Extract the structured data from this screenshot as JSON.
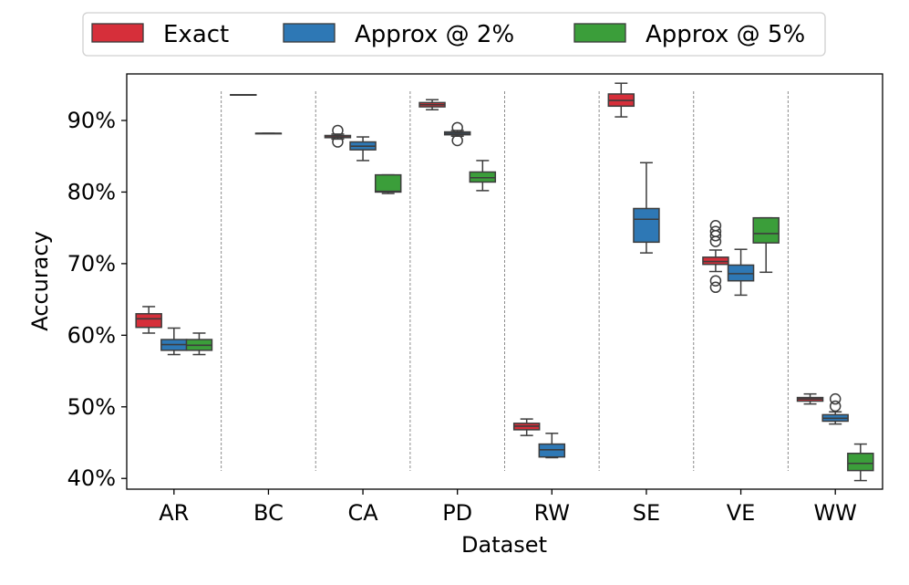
{
  "chart_data": {
    "type": "box",
    "xlabel": "Dataset",
    "ylabel": "Accuracy",
    "ylim": [
      38.5,
      96.5
    ],
    "yticks": [
      {
        "value": 40,
        "label": "40%"
      },
      {
        "value": 50,
        "label": "50%"
      },
      {
        "value": 60,
        "label": "60%"
      },
      {
        "value": 70,
        "label": "70%"
      },
      {
        "value": 80,
        "label": "80%"
      },
      {
        "value": 90,
        "label": "90%"
      }
    ],
    "categories": [
      "AR",
      "BC",
      "CA",
      "PD",
      "RW",
      "SE",
      "VE",
      "WW"
    ],
    "legend_position": "top-center",
    "series": [
      {
        "name": "Exact",
        "color": "#d62f3a",
        "boxes": [
          {
            "category": "AR",
            "whislo": 60.3,
            "q1": 61.1,
            "med": 62.3,
            "q3": 63.0,
            "whishi": 64.0,
            "fliers": []
          },
          {
            "category": "BC",
            "whislo": 93.6,
            "q1": 93.6,
            "med": 93.6,
            "q3": 93.6,
            "whishi": 93.6,
            "fliers": []
          },
          {
            "category": "CA",
            "whislo": 87.4,
            "q1": 87.6,
            "med": 87.7,
            "q3": 87.9,
            "whishi": 88.1,
            "fliers": [
              87.0,
              88.6
            ]
          },
          {
            "category": "PD",
            "whislo": 91.5,
            "q1": 91.9,
            "med": 92.2,
            "q3": 92.5,
            "whishi": 92.9,
            "fliers": []
          },
          {
            "category": "RW",
            "whislo": 46.0,
            "q1": 46.8,
            "med": 47.3,
            "q3": 47.7,
            "whishi": 48.3,
            "fliers": []
          },
          {
            "category": "SE",
            "whislo": 90.5,
            "q1": 92.0,
            "med": 92.8,
            "q3": 93.7,
            "whishi": 95.2,
            "fliers": []
          },
          {
            "category": "VE",
            "whislo": 68.9,
            "q1": 69.9,
            "med": 70.3,
            "q3": 70.9,
            "whishi": 71.9,
            "fliers": [
              66.7,
              67.6,
              73.1,
              73.9,
              74.5,
              75.3
            ]
          },
          {
            "category": "WW",
            "whislo": 50.4,
            "q1": 50.8,
            "med": 51.1,
            "q3": 51.3,
            "whishi": 51.8,
            "fliers": []
          }
        ]
      },
      {
        "name": "Approx @ 2%",
        "color": "#2e78b5",
        "boxes": [
          {
            "category": "AR",
            "whislo": 57.3,
            "q1": 57.9,
            "med": 58.7,
            "q3": 59.4,
            "whishi": 61.0,
            "fliers": []
          },
          {
            "category": "BC",
            "whislo": 88.2,
            "q1": 88.2,
            "med": 88.2,
            "q3": 88.2,
            "whishi": 88.2,
            "fliers": []
          },
          {
            "category": "CA",
            "whislo": 84.4,
            "q1": 85.9,
            "med": 86.4,
            "q3": 87.0,
            "whishi": 87.7,
            "fliers": []
          },
          {
            "category": "PD",
            "whislo": 87.8,
            "q1": 88.0,
            "med": 88.2,
            "q3": 88.4,
            "whishi": 88.6,
            "fliers": [
              87.2,
              89.0
            ]
          },
          {
            "category": "RW",
            "whislo": 42.9,
            "q1": 43.0,
            "med": 44.0,
            "q3": 44.8,
            "whishi": 46.3,
            "fliers": []
          },
          {
            "category": "SE",
            "whislo": 71.5,
            "q1": 73.0,
            "med": 76.2,
            "q3": 77.7,
            "whishi": 84.1,
            "fliers": []
          },
          {
            "category": "VE",
            "whislo": 65.6,
            "q1": 67.6,
            "med": 68.6,
            "q3": 69.8,
            "whishi": 72.0,
            "fliers": []
          },
          {
            "category": "WW",
            "whislo": 47.6,
            "q1": 48.0,
            "med": 48.4,
            "q3": 48.9,
            "whishi": 49.3,
            "fliers": [
              50.1,
              51.1
            ]
          }
        ]
      },
      {
        "name": "Approx @ 5%",
        "color": "#3b9e3a",
        "boxes": [
          {
            "category": "AR",
            "whislo": 57.3,
            "q1": 57.9,
            "med": 58.6,
            "q3": 59.4,
            "whishi": 60.3,
            "fliers": []
          },
          {
            "category": "BC",
            "whislo": null,
            "q1": null,
            "med": null,
            "q3": null,
            "whishi": null,
            "fliers": []
          },
          {
            "category": "CA",
            "whislo": 79.8,
            "q1": 80.0,
            "med": 80.1,
            "q3": 82.4,
            "whishi": 82.4,
            "fliers": []
          },
          {
            "category": "PD",
            "whislo": 80.2,
            "q1": 81.4,
            "med": 82.0,
            "q3": 82.8,
            "whishi": 84.4,
            "fliers": []
          },
          {
            "category": "RW",
            "whislo": null,
            "q1": null,
            "med": null,
            "q3": null,
            "whishi": null,
            "fliers": []
          },
          {
            "category": "SE",
            "whislo": null,
            "q1": null,
            "med": null,
            "q3": null,
            "whishi": null,
            "fliers": []
          },
          {
            "category": "VE",
            "whislo": 68.8,
            "q1": 72.9,
            "med": 74.2,
            "q3": 76.4,
            "whishi": 76.4,
            "fliers": []
          },
          {
            "category": "WW",
            "whislo": 39.7,
            "q1": 41.1,
            "med": 42.1,
            "q3": 43.5,
            "whishi": 44.8,
            "fliers": []
          }
        ]
      }
    ]
  }
}
